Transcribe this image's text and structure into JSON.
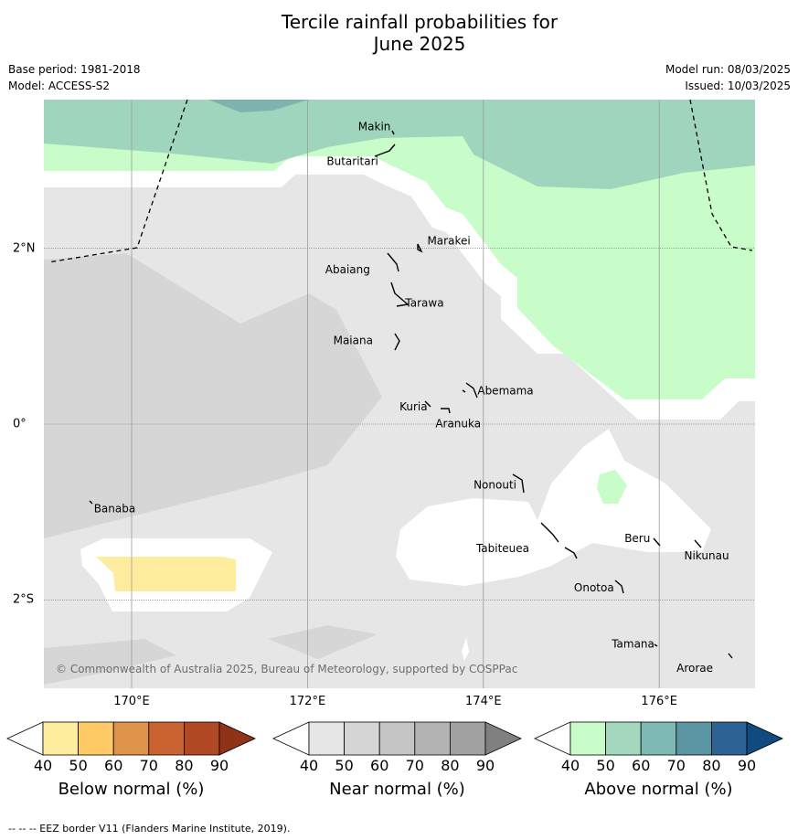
{
  "title": [
    "Tercile rainfall probabilities for",
    "June 2025"
  ],
  "base_period": "Base period: 1981-2018",
  "model": "Model: ACCESS-S2",
  "model_run": "Model run: 08/03/2025",
  "issued": "Issued: 10/03/2025",
  "copyright": "© Commonwealth of Australia 2025, Bureau of Meteorology, supported by COSPPac",
  "footer": "--  --  -- EEZ border V11 (Flanders Marine Institute, 2019).",
  "map": {
    "lon_range": [
      169.0,
      177.1
    ],
    "lat_range": [
      -3.0,
      3.7
    ],
    "lon_ticks": [
      {
        "value": 170,
        "label": "170°E"
      },
      {
        "value": 172,
        "label": "172°E"
      },
      {
        "value": 174,
        "label": "174°E"
      },
      {
        "value": 176,
        "label": "176°E"
      }
    ],
    "lat_ticks": [
      {
        "value": 2,
        "label": "2°N"
      },
      {
        "value": 0,
        "label": "0°"
      },
      {
        "value": -2,
        "label": "2°S"
      }
    ],
    "places": [
      {
        "name": "Makin",
        "lon": 172.95,
        "lat": 3.3
      },
      {
        "name": "Butaritari",
        "lon": 172.8,
        "lat": 3.05
      },
      {
        "name": "Marakei",
        "lon": 173.3,
        "lat": 2.0
      },
      {
        "name": "Abaiang",
        "lon": 172.95,
        "lat": 1.8
      },
      {
        "name": "Tarawa",
        "lon": 173.05,
        "lat": 1.4
      },
      {
        "name": "Maiana",
        "lon": 173.0,
        "lat": 0.95
      },
      {
        "name": "Abemama",
        "lon": 173.85,
        "lat": 0.4
      },
      {
        "name": "Kuria",
        "lon": 173.4,
        "lat": 0.22
      },
      {
        "name": "Aranuka",
        "lon": 173.6,
        "lat": 0.17
      },
      {
        "name": "Banaba",
        "lon": 169.55,
        "lat": -0.88
      },
      {
        "name": "Nonouti",
        "lon": 174.45,
        "lat": -0.65
      },
      {
        "name": "Tabiteuea",
        "lon": 174.75,
        "lat": -1.35
      },
      {
        "name": "Beru",
        "lon": 176.0,
        "lat": -1.3
      },
      {
        "name": "Nikunau",
        "lon": 176.45,
        "lat": -1.35
      },
      {
        "name": "Onotoa",
        "lon": 175.55,
        "lat": -1.8
      },
      {
        "name": "Tamana",
        "lon": 176.0,
        "lat": -2.5
      },
      {
        "name": "Arorae",
        "lon": 176.8,
        "lat": -2.65
      }
    ]
  },
  "colorbars": [
    {
      "title": "Below normal (%)",
      "labels": [
        "40",
        "50",
        "60",
        "70",
        "80",
        "90"
      ],
      "colors": [
        "#ffffff",
        "#ffed9f",
        "#fecb67",
        "#e0944a",
        "#cb6232",
        "#b04823",
        "#8e3318"
      ]
    },
    {
      "title": "Near normal (%)",
      "labels": [
        "40",
        "50",
        "60",
        "70",
        "80",
        "90"
      ],
      "colors": [
        "#ffffff",
        "#e6e6e6",
        "#d5d5d5",
        "#c5c5c5",
        "#b3b3b3",
        "#a1a1a1",
        "#808080"
      ]
    },
    {
      "title": "Above normal (%)",
      "labels": [
        "40",
        "50",
        "60",
        "70",
        "80",
        "90"
      ],
      "colors": [
        "#ffffff",
        "#c8fcc8",
        "#a3d8be",
        "#7fb9b5",
        "#5b94a2",
        "#2d6295",
        "#104a7e"
      ]
    }
  ]
}
